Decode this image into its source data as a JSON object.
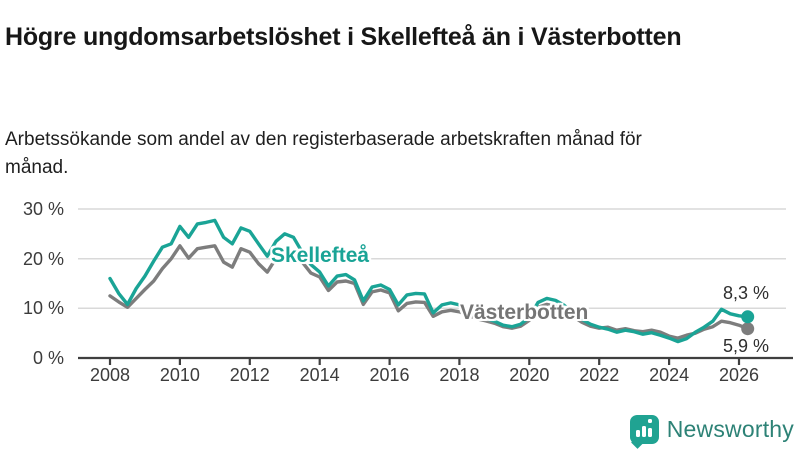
{
  "header": {
    "title": "Högre ungdomsarbetslöshet i Skellefteå än i Västerbotten",
    "subtitle": "Arbetssökande som andel av den registerbaserade arbetskraften månad för månad."
  },
  "chart_data": {
    "type": "line",
    "title": "Högre ungdomsarbetslöshet i Skellefteå än i Västerbotten",
    "subtitle": "Arbetssökande som andel av den registerbaserade arbetskraften månad för månad.",
    "xlabel": "",
    "ylabel": "",
    "grid": "horizontal",
    "legend": "inline-labels-on-lines",
    "xlim": [
      2007.8,
      2026.6
    ],
    "ylim": [
      0,
      32
    ],
    "x_start": 2008.0,
    "x_step": 0.25,
    "x_ticks": [
      {
        "value": 2008,
        "label": "2008"
      },
      {
        "value": 2010,
        "label": "2010"
      },
      {
        "value": 2012,
        "label": "2012"
      },
      {
        "value": 2014,
        "label": "2014"
      },
      {
        "value": 2016,
        "label": "2016"
      },
      {
        "value": 2018,
        "label": "2018"
      },
      {
        "value": 2020,
        "label": "2020"
      },
      {
        "value": 2022,
        "label": "2022"
      },
      {
        "value": 2024,
        "label": "2024"
      },
      {
        "value": 2026,
        "label": "2026"
      }
    ],
    "y_ticks": [
      {
        "value": 0,
        "label": "0 %"
      },
      {
        "value": 10,
        "label": "10 %"
      },
      {
        "value": 20,
        "label": "20 %"
      },
      {
        "value": 30,
        "label": "30 %"
      }
    ],
    "colors": {
      "grid": "#d9d9d9",
      "axis": "#3f3f3f"
    },
    "series": [
      {
        "name": "Skellefteå",
        "color": "#1aa496",
        "end_label": "8,3 %",
        "end_value": 8.3,
        "values": [
          16.0,
          13.0,
          10.8,
          14.0,
          16.5,
          19.5,
          22.3,
          23.0,
          26.5,
          24.3,
          27.0,
          27.3,
          27.7,
          24.3,
          23.0,
          26.2,
          25.5,
          23.0,
          20.5,
          23.5,
          25.0,
          24.3,
          21.3,
          18.8,
          17.3,
          14.5,
          16.5,
          16.8,
          15.7,
          11.5,
          14.3,
          14.7,
          13.8,
          10.7,
          12.7,
          13.0,
          12.9,
          9.1,
          10.7,
          11.1,
          10.7,
          9.3,
          8.4,
          8.0,
          7.4,
          6.6,
          6.3,
          6.8,
          8.2,
          11.2,
          12.0,
          11.6,
          10.6,
          9.2,
          7.8,
          6.8,
          6.2,
          5.8,
          5.2,
          5.6,
          5.3,
          4.8,
          5.1,
          4.6,
          4.0,
          3.3,
          3.9,
          5.2,
          6.2,
          7.4,
          9.8,
          8.9,
          8.5,
          8.3
        ]
      },
      {
        "name": "Västerbotten",
        "color": "#7d7d7d",
        "end_label": "5,9 %",
        "end_value": 5.9,
        "values": [
          12.5,
          11.3,
          10.2,
          12.0,
          13.8,
          15.5,
          18.0,
          20.0,
          22.6,
          20.1,
          22.0,
          22.3,
          22.6,
          19.3,
          18.3,
          22.0,
          21.3,
          19.0,
          17.3,
          20.1,
          20.7,
          20.3,
          19.3,
          17.1,
          16.3,
          13.6,
          15.3,
          15.5,
          15.0,
          10.8,
          13.3,
          13.7,
          13.1,
          9.5,
          11.0,
          11.3,
          11.2,
          8.4,
          9.3,
          9.6,
          9.3,
          8.6,
          7.9,
          7.5,
          7.0,
          6.3,
          6.0,
          6.4,
          7.6,
          10.2,
          10.8,
          10.4,
          9.6,
          8.4,
          7.2,
          6.4,
          6.0,
          6.2,
          5.6,
          5.9,
          5.5,
          5.3,
          5.6,
          5.2,
          4.4,
          4.0,
          4.6,
          5.0,
          5.8,
          6.3,
          7.4,
          7.1,
          6.6,
          5.9
        ]
      }
    ]
  },
  "footer": {
    "brand": "Newsworthy",
    "logo_icon": "bar-chart-speech-bubble-icon"
  }
}
